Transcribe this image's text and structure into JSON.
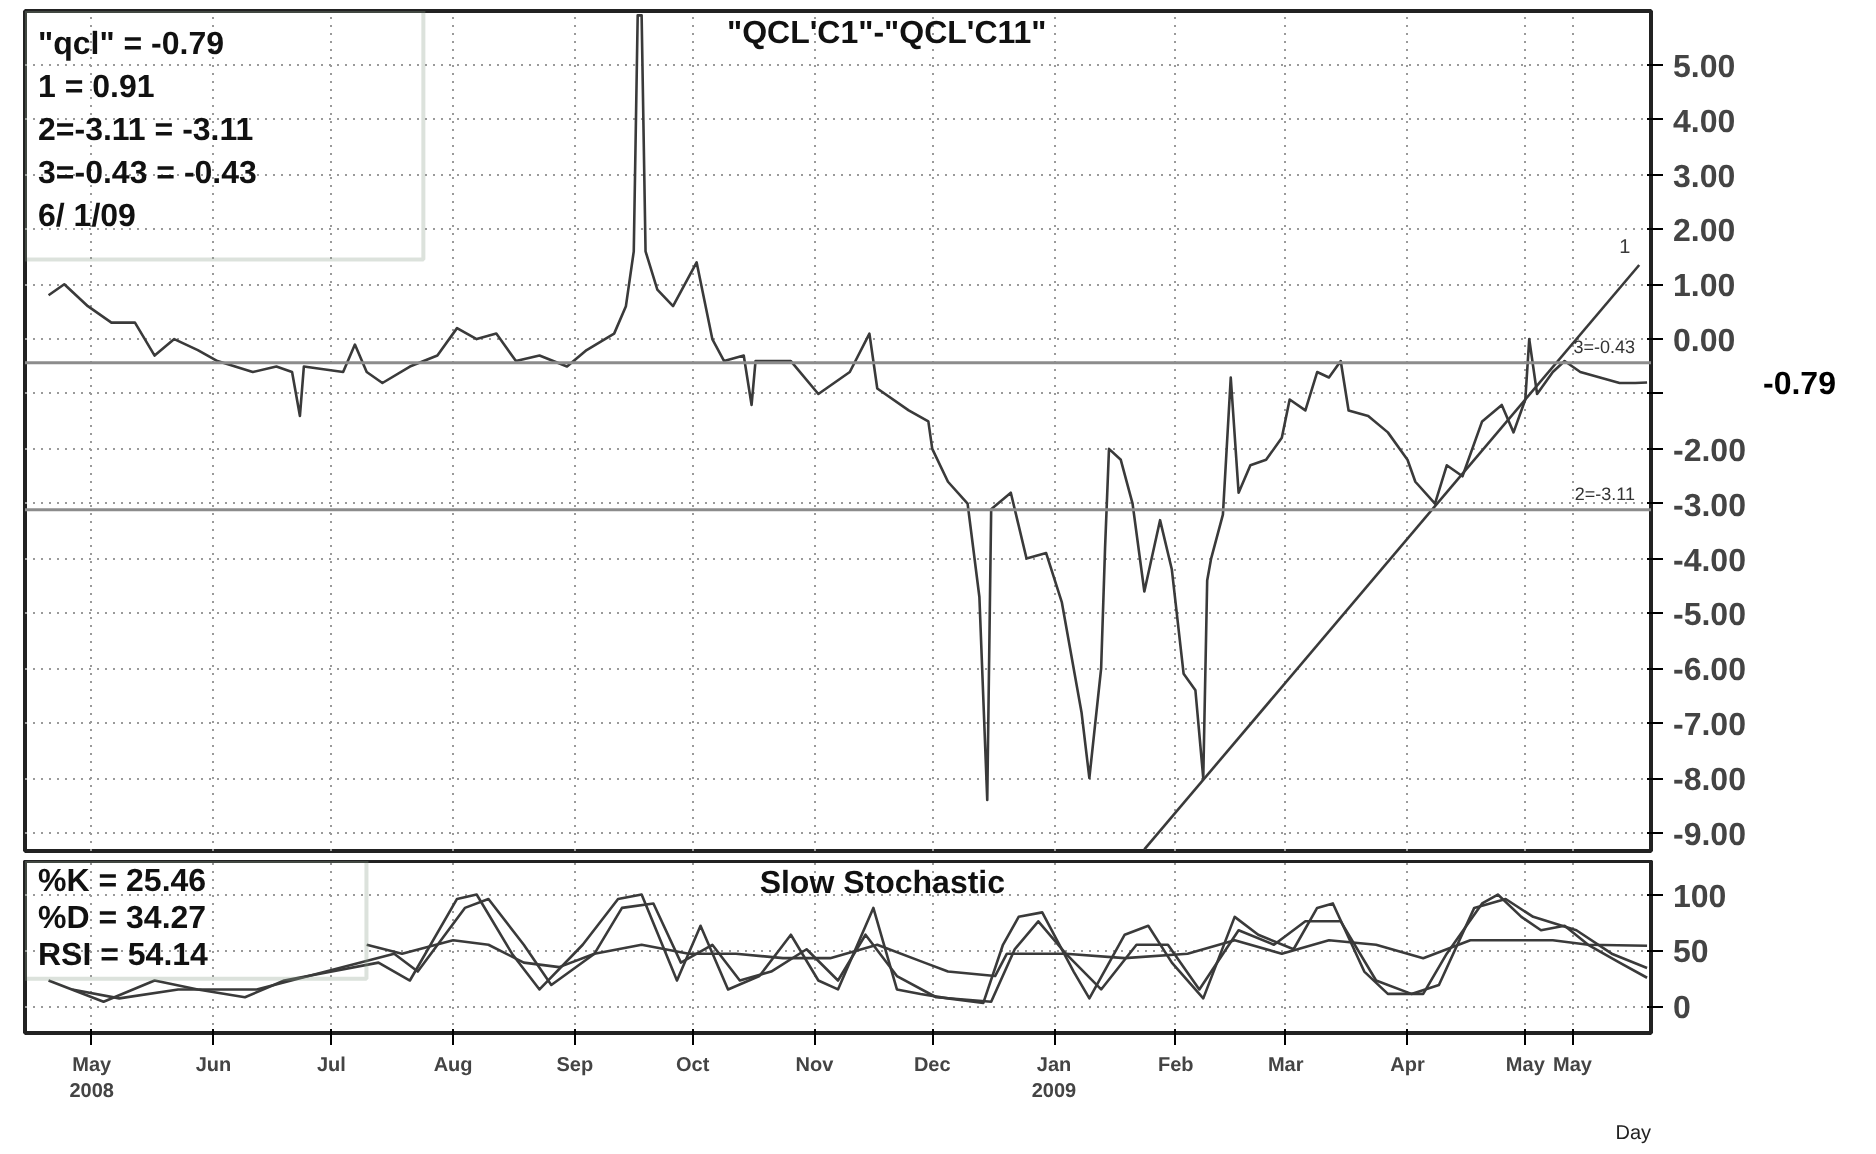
{
  "chart_data": [
    {
      "type": "line",
      "title": "\"QCL'C1\"-\"QCL'C11\"",
      "tick_labels": "y",
      "grid": true,
      "xlim": [
        "2008-04-14",
        "2009-06-02"
      ],
      "xticks": [
        {
          "value": "2008-05-01",
          "label": null
        },
        {
          "value": "2008-06-01",
          "label": null
        },
        {
          "value": "2008-07-01",
          "label": null
        },
        {
          "value": "2008-08-01",
          "label": null
        },
        {
          "value": "2008-09-01",
          "label": null
        },
        {
          "value": "2008-10-01",
          "label": null
        },
        {
          "value": "2008-11-01",
          "label": null
        },
        {
          "value": "2008-12-01",
          "label": null
        },
        {
          "value": "2009-01-01",
          "label": null
        },
        {
          "value": "2009-02-01",
          "label": null
        },
        {
          "value": "2009-03-01",
          "label": null
        },
        {
          "value": "2009-04-01",
          "label": null
        },
        {
          "value": "2009-05-01",
          "label": null
        },
        {
          "value": "2009-05-13",
          "label": null
        }
      ],
      "ylim": [
        -9.33,
        5.98
      ],
      "yticks": [
        {
          "value": 5,
          "label": "5.00"
        },
        {
          "value": 4,
          "label": "4.00"
        },
        {
          "value": 3,
          "label": "3.00"
        },
        {
          "value": 2,
          "label": "2.00"
        },
        {
          "value": 1,
          "label": "1.00"
        },
        {
          "value": 0,
          "label": "0.00"
        },
        {
          "value": -1,
          "label": null
        },
        {
          "value": -2,
          "label": "-2.00"
        },
        {
          "value": -3,
          "label": "-3.00"
        },
        {
          "value": -4,
          "label": "-4.00"
        },
        {
          "value": -5,
          "label": "-5.00"
        },
        {
          "value": -6,
          "label": "-6.00"
        },
        {
          "value": -7,
          "label": "-7.00"
        },
        {
          "value": -8,
          "label": "-8.00"
        },
        {
          "value": -9,
          "label": "-9.00"
        }
      ],
      "ref_lines": [
        {
          "axis": "y",
          "value": -0.43,
          "label": "3=-0.43",
          "color": "#8c8c8c"
        },
        {
          "axis": "y",
          "value": -3.11,
          "label": "2=-3.11",
          "color": "#8c8c8c"
        }
      ],
      "annotations": [
        "\"qcl\"   =  -0.79",
        "1  =  0.91",
        "2=-3.11  =  -3.11",
        "3=-0.43  =  -0.43",
        " 6/  1/09",
        "-0.79"
      ],
      "series": [
        {
          "color": "#3a3a3a",
          "x": [
            "2008-04-20",
            "2008-04-24",
            "2008-04-30",
            "2008-05-06",
            "2008-05-12",
            "2008-05-17",
            "2008-05-22",
            "2008-05-28",
            "2008-06-02",
            "2008-06-11",
            "2008-06-17",
            "2008-06-21",
            "2008-06-23",
            "2008-06-24",
            "2008-07-04",
            "2008-07-07",
            "2008-07-10",
            "2008-07-14",
            "2008-07-21",
            "2008-07-28",
            "2008-08-02",
            "2008-08-07",
            "2008-08-12",
            "2008-08-17",
            "2008-08-23",
            "2008-08-30",
            "2008-09-04",
            "2008-09-11",
            "2008-09-14",
            "2008-09-16",
            "2008-09-17",
            "2008-09-18",
            "2008-09-19",
            "2008-09-22",
            "2008-09-26",
            "2008-10-02",
            "2008-10-06",
            "2008-10-09",
            "2008-10-14",
            "2008-10-16",
            "2008-10-17",
            "2008-10-26",
            "2008-11-02",
            "2008-11-10",
            "2008-11-15",
            "2008-11-17",
            "2008-11-25",
            "2008-11-30",
            "2008-12-01",
            "2008-12-05",
            "2008-12-10",
            "2008-12-13",
            "2008-12-15",
            "2008-12-16",
            "2008-12-21",
            "2008-12-25",
            "2008-12-30",
            "2009-01-03",
            "2009-01-08",
            "2009-01-10",
            "2009-01-13",
            "2009-01-14",
            "2009-01-15",
            "2009-01-18",
            "2009-01-21",
            "2009-01-24",
            "2009-01-28",
            "2009-01-31",
            "2009-02-03",
            "2009-02-06",
            "2009-02-08",
            "2009-02-09",
            "2009-02-10",
            "2009-02-13",
            "2009-02-15",
            "2009-02-17",
            "2009-02-20",
            "2009-02-24",
            "2009-02-28",
            "2009-03-02",
            "2009-03-06",
            "2009-03-09",
            "2009-03-12",
            "2009-03-15",
            "2009-03-17",
            "2009-03-22",
            "2009-03-27",
            "2009-04-01",
            "2009-04-03",
            "2009-04-08",
            "2009-04-11",
            "2009-04-15",
            "2009-04-20",
            "2009-04-25",
            "2009-04-28",
            "2009-05-01",
            "2009-05-02",
            "2009-05-04",
            "2009-05-08",
            "2009-05-11",
            "2009-05-15",
            "2009-05-20",
            "2009-05-25",
            "2009-05-29",
            "2009-06-01"
          ],
          "values": [
            0.8,
            1.0,
            0.6,
            0.3,
            0.3,
            -0.3,
            0.0,
            -0.2,
            -0.4,
            -0.6,
            -0.5,
            -0.6,
            -1.4,
            -0.5,
            -0.6,
            -0.1,
            -0.6,
            -0.8,
            -0.5,
            -0.3,
            0.2,
            0.0,
            0.1,
            -0.4,
            -0.3,
            -0.5,
            -0.2,
            0.1,
            0.6,
            1.6,
            5.9,
            5.9,
            1.6,
            0.9,
            0.6,
            1.4,
            0.0,
            -0.4,
            -0.3,
            -1.2,
            -0.4,
            -0.4,
            -1.0,
            -0.6,
            0.1,
            -0.9,
            -1.3,
            -1.5,
            -2.0,
            -2.6,
            -3.0,
            -4.7,
            -8.4,
            -3.1,
            -2.8,
            -4.0,
            -3.9,
            -4.8,
            -6.8,
            -8.0,
            -6.0,
            -3.8,
            -2.0,
            -2.2,
            -3.0,
            -4.6,
            -3.3,
            -4.2,
            -6.1,
            -6.4,
            -8.0,
            -4.4,
            -4.0,
            -3.2,
            -0.7,
            -2.8,
            -2.3,
            -2.2,
            -1.8,
            -1.1,
            -1.3,
            -0.6,
            -0.7,
            -0.4,
            -1.3,
            -1.4,
            -1.7,
            -2.2,
            -2.6,
            -3.0,
            -2.3,
            -2.5,
            -1.5,
            -1.2,
            -1.7,
            -1.1,
            0.0,
            -1.0,
            -0.6,
            -0.4,
            -0.6,
            -0.7,
            -0.8,
            -0.8,
            -0.79
          ]
        },
        {
          "name": "1",
          "color": "#3a3a3a",
          "x": [
            "2009-01-24",
            "2009-05-30"
          ],
          "values": [
            -9.3,
            1.35
          ]
        }
      ]
    },
    {
      "type": "line",
      "title": "Slow  Stochastic",
      "xlabel": "Day",
      "grid": true,
      "xlim": [
        "2008-04-14",
        "2009-06-02"
      ],
      "xticks": [
        {
          "value": "2008-05-01",
          "label": "May\n2008"
        },
        {
          "value": "2008-06-01",
          "label": "Jun"
        },
        {
          "value": "2008-07-01",
          "label": "Jul"
        },
        {
          "value": "2008-08-01",
          "label": "Aug"
        },
        {
          "value": "2008-09-01",
          "label": "Sep"
        },
        {
          "value": "2008-10-01",
          "label": "Oct"
        },
        {
          "value": "2008-11-01",
          "label": "Nov"
        },
        {
          "value": "2008-12-01",
          "label": "Dec"
        },
        {
          "value": "2009-01-01",
          "label": "Jan\n2009"
        },
        {
          "value": "2009-02-01",
          "label": "Feb"
        },
        {
          "value": "2009-03-01",
          "label": "Mar"
        },
        {
          "value": "2009-04-01",
          "label": "Apr"
        },
        {
          "value": "2009-05-01",
          "label": "May"
        },
        {
          "value": "2009-05-13",
          "label": "May"
        }
      ],
      "ylim": [
        -24,
        130
      ],
      "yticks": [
        0,
        50,
        100
      ],
      "annotations": [
        "%K      =  25.46",
        "%D      =  34.27",
        "RSI     =  54.14"
      ],
      "series": [
        {
          "color": "#3a3a3a",
          "x": [
            "2008-04-20",
            "2008-05-04",
            "2008-05-17",
            "2008-05-28",
            "2008-06-09",
            "2008-06-19",
            "2008-07-13",
            "2008-07-21",
            "2008-08-02",
            "2008-08-07",
            "2008-08-16",
            "2008-08-23",
            "2008-09-03",
            "2008-09-12",
            "2008-09-18",
            "2008-09-27",
            "2008-10-03",
            "2008-10-10",
            "2008-10-18",
            "2008-10-26",
            "2008-11-02",
            "2008-11-07",
            "2008-11-16",
            "2008-11-22",
            "2008-11-28",
            "2008-12-05",
            "2008-12-14",
            "2008-12-19",
            "2008-12-23",
            "2008-12-29",
            "2009-01-06",
            "2009-01-10",
            "2009-01-19",
            "2009-01-25",
            "2009-01-31",
            "2009-02-08",
            "2009-02-16",
            "2009-02-22",
            "2009-03-03",
            "2009-03-09",
            "2009-03-13",
            "2009-03-21",
            "2009-03-27",
            "2009-04-05",
            "2009-04-11",
            "2009-04-20",
            "2009-04-24",
            "2009-04-30",
            "2009-05-05",
            "2009-05-11",
            "2009-05-17",
            "2009-05-25",
            "2009-06-01"
          ],
          "values": [
            23,
            4,
            23,
            15,
            8,
            23,
            39,
            23,
            96,
            100,
            47,
            15,
            55,
            96,
            100,
            23,
            72,
            15,
            27,
            64,
            23,
            15,
            88,
            15,
            11,
            7,
            3,
            55,
            80,
            84,
            31,
            7,
            64,
            72,
            39,
            7,
            80,
            64,
            51,
            88,
            92,
            31,
            11,
            11,
            47,
            92,
            100,
            80,
            68,
            72,
            55,
            39,
            25.46
          ]
        },
        {
          "color": "#3a3a3a",
          "x": [
            "2008-04-26",
            "2008-05-08",
            "2008-05-23",
            "2008-06-12",
            "2008-07-17",
            "2008-07-23",
            "2008-08-04",
            "2008-08-10",
            "2008-08-19",
            "2008-08-26",
            "2008-09-06",
            "2008-09-13",
            "2008-09-21",
            "2008-09-28",
            "2008-10-06",
            "2008-10-13",
            "2008-10-21",
            "2008-10-30",
            "2008-11-07",
            "2008-11-14",
            "2008-11-22",
            "2008-12-02",
            "2008-12-16",
            "2008-12-22",
            "2008-12-28",
            "2009-01-04",
            "2009-01-13",
            "2009-01-22",
            "2009-01-30",
            "2009-02-07",
            "2009-02-17",
            "2009-02-26",
            "2009-03-06",
            "2009-03-15",
            "2009-03-24",
            "2009-04-02",
            "2009-04-09",
            "2009-04-18",
            "2009-04-26",
            "2009-05-03",
            "2009-05-14",
            "2009-05-23",
            "2009-06-01"
          ],
          "values": [
            15,
            7,
            15,
            15,
            47,
            31,
            88,
            96,
            55,
            19,
            47,
            88,
            92,
            39,
            55,
            23,
            31,
            51,
            23,
            64,
            27,
            8,
            4,
            51,
            76,
            47,
            15,
            55,
            55,
            15,
            68,
            55,
            76,
            76,
            23,
            11,
            19,
            88,
            96,
            80,
            68,
            47,
            34.27
          ]
        },
        {
          "color": "#3a3a3a",
          "x": [
            "2008-07-10",
            "2008-07-19",
            "2008-08-01",
            "2008-08-10",
            "2008-08-19",
            "2008-08-28",
            "2008-09-06",
            "2008-09-18",
            "2008-09-30",
            "2008-10-12",
            "2008-10-24",
            "2008-11-05",
            "2008-11-17",
            "2008-11-29",
            "2008-12-05",
            "2008-12-17",
            "2008-12-20",
            "2009-01-04",
            "2009-01-19",
            "2009-02-04",
            "2009-02-16",
            "2009-02-28",
            "2009-03-12",
            "2009-03-24",
            "2009-04-05",
            "2009-04-17",
            "2009-04-29",
            "2009-05-08",
            "2009-05-17",
            "2009-06-01"
          ],
          "values": [
            55,
            47,
            59,
            55,
            39,
            35,
            47,
            55,
            47,
            47,
            43,
            43,
            55,
            39,
            31,
            27,
            47,
            47,
            43,
            47,
            59,
            47,
            59,
            55,
            43,
            59,
            59,
            59,
            55,
            54.14
          ]
        }
      ]
    }
  ]
}
